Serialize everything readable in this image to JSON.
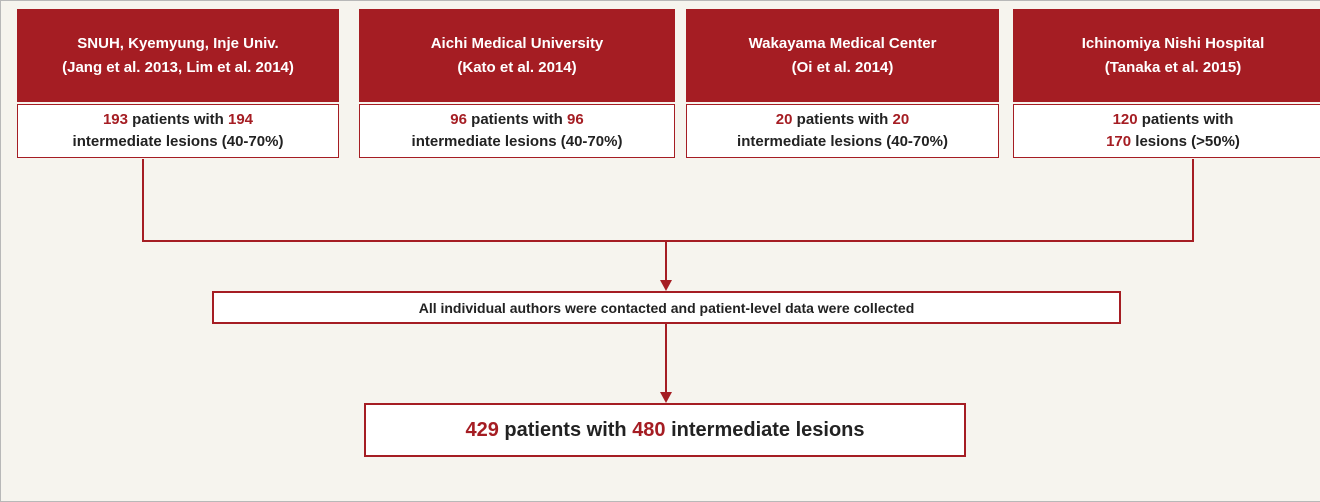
{
  "sources": [
    {
      "title": [
        "SNUH, Kyemyung, Inje Univ.",
        "(Jang et al. 2013, Lim et al. 2014)"
      ],
      "body": [
        [
          {
            "text": "193",
            "highlight": true
          },
          {
            "text": " patients with ",
            "highlight": false
          },
          {
            "text": "194",
            "highlight": true
          }
        ],
        [
          {
            "text": "intermediate lesions (40-70%)",
            "highlight": false
          }
        ]
      ]
    },
    {
      "title": [
        "Aichi Medical University",
        "(Kato et al. 2014)"
      ],
      "body": [
        [
          {
            "text": "96",
            "highlight": true
          },
          {
            "text": " patients with ",
            "highlight": false
          },
          {
            "text": "96",
            "highlight": true
          }
        ],
        [
          {
            "text": "intermediate lesions (40-70%)",
            "highlight": false
          }
        ]
      ]
    },
    {
      "title": [
        "Wakayama Medical Center",
        "(Oi et al. 2014)"
      ],
      "body": [
        [
          {
            "text": "20",
            "highlight": true
          },
          {
            "text": " patients with ",
            "highlight": false
          },
          {
            "text": "20",
            "highlight": true
          }
        ],
        [
          {
            "text": "intermediate lesions (40-70%)",
            "highlight": false
          }
        ]
      ]
    },
    {
      "title": [
        "Ichinomiya Nishi Hospital",
        "(Tanaka et al. 2015)"
      ],
      "body": [
        [
          {
            "text": "120",
            "highlight": true
          },
          {
            "text": " patients with",
            "highlight": false
          }
        ],
        [
          {
            "text": "170",
            "highlight": true
          },
          {
            "text": " lesions (>50%)",
            "highlight": false
          }
        ]
      ]
    }
  ],
  "process": "All individual authors were contacted and patient-level data were collected",
  "result": [
    {
      "text": "429",
      "highlight": true
    },
    {
      "text": " patients with ",
      "highlight": false
    },
    {
      "text": "480",
      "highlight": true
    },
    {
      "text": " intermediate lesions",
      "highlight": false
    }
  ]
}
